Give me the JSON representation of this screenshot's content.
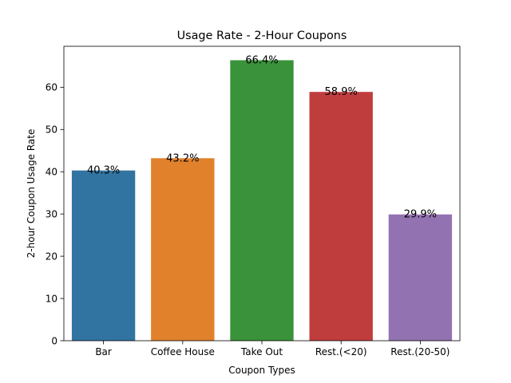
{
  "chart_data": {
    "type": "bar",
    "title": "Usage Rate - 2-Hour Coupons",
    "xlabel": "Coupon Types",
    "ylabel": "2-hour Coupon Usage Rate",
    "categories": [
      "Bar",
      "Coffee House",
      "Take Out",
      "Rest.(<20)",
      "Rest.(20-50)"
    ],
    "values": [
      40.3,
      43.2,
      66.4,
      58.9,
      29.9
    ],
    "data_labels": [
      "40.3%",
      "43.2%",
      "66.4%",
      "58.9%",
      "29.9%"
    ],
    "colors": [
      "#3274a1",
      "#e1812c",
      "#3a923a",
      "#c03d3e",
      "#9372b2"
    ],
    "ylim": [
      0,
      69.7
    ],
    "yticks": [
      0,
      10,
      20,
      30,
      40,
      50,
      60
    ],
    "grid": false,
    "legend": "none"
  }
}
